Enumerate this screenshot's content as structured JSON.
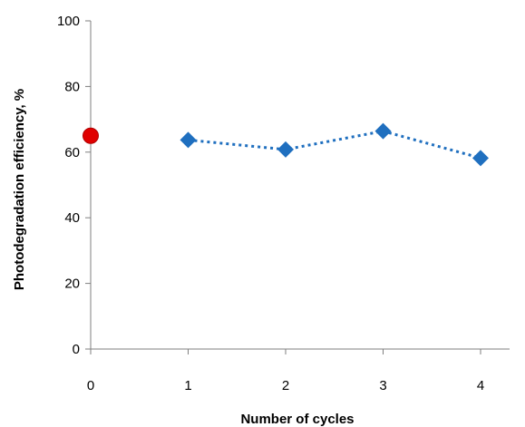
{
  "chart_data": {
    "type": "scatter",
    "title": "",
    "xlabel": "Number of cycles",
    "ylabel": "Photodegradation efficiency, %",
    "xlim": [
      0,
      4.4
    ],
    "ylim": [
      0,
      100
    ],
    "xticks": [
      0,
      1,
      2,
      3,
      4
    ],
    "yticks": [
      0,
      20,
      40,
      60,
      80,
      100
    ],
    "grid": false,
    "legend": "none",
    "series": [
      {
        "marker": "circle",
        "color": "#e00000",
        "line": "none",
        "x": [
          0
        ],
        "y": [
          65
        ]
      },
      {
        "marker": "diamond",
        "color": "#1f6fbf",
        "line": "dotted",
        "x": [
          1,
          2,
          3,
          4
        ],
        "y": [
          63.7,
          60.8,
          66.4,
          58.2
        ]
      }
    ]
  }
}
